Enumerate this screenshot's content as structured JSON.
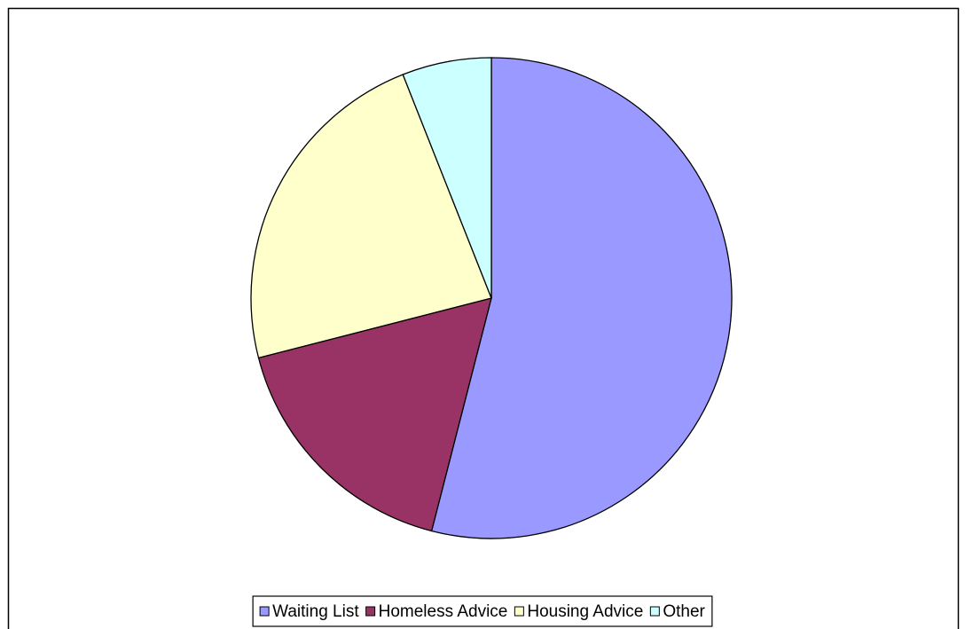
{
  "chart_data": {
    "type": "pie",
    "categories": [
      "Waiting List",
      "Homeless Advice",
      "Housing Advice",
      "Other"
    ],
    "values": [
      54,
      17,
      23,
      6
    ],
    "colors": [
      "#9999ff",
      "#993366",
      "#ffffcc",
      "#ccffff"
    ],
    "legend": "bottom"
  }
}
